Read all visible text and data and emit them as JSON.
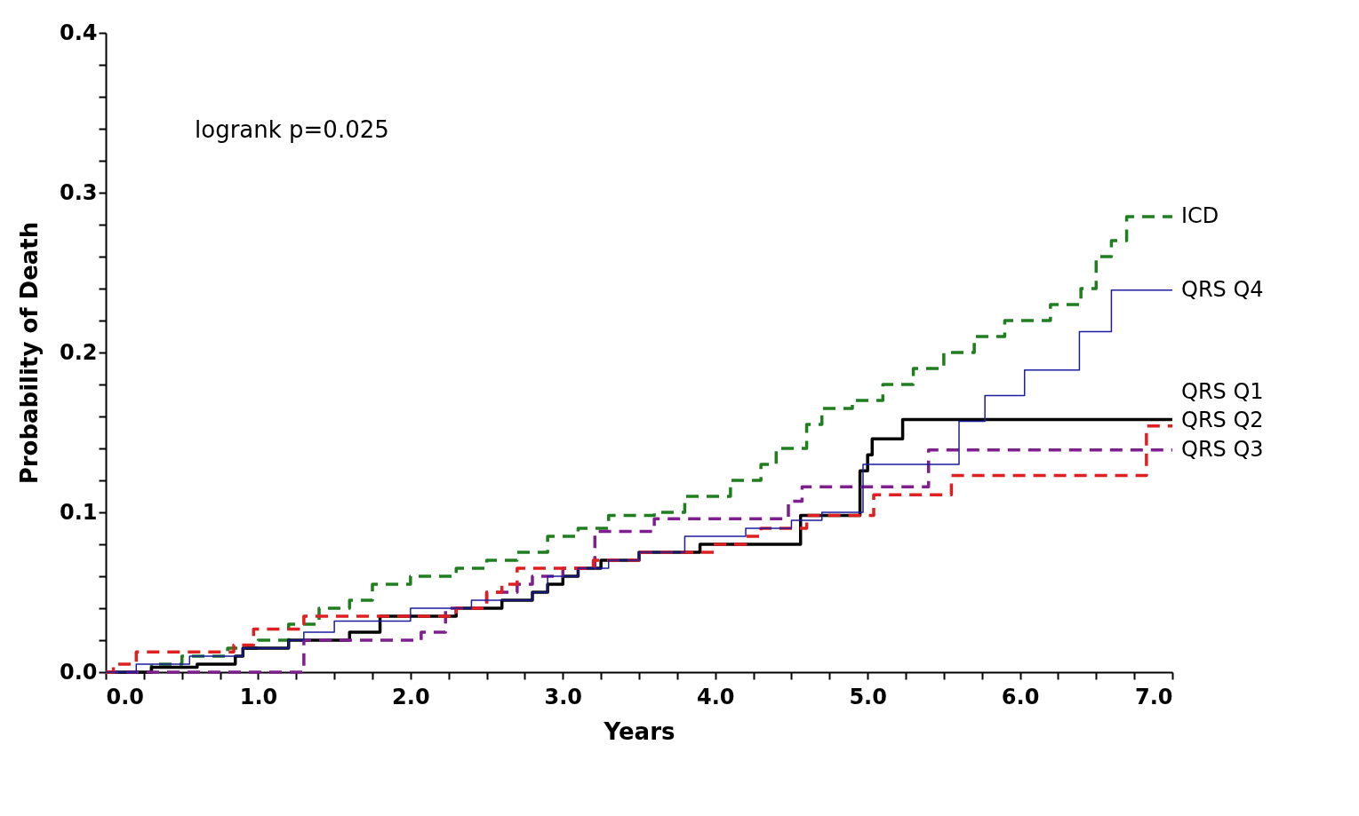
{
  "chart_data": {
    "type": "step",
    "xlabel": "Years",
    "ylabel": "Probability of Death",
    "annotations": [
      "logrank p=0.025"
    ],
    "legend": false,
    "grid": false,
    "xlim": [
      0,
      7
    ],
    "ylim": [
      0,
      0.4
    ],
    "xticks": [
      {
        "value": 0,
        "label": "0.0"
      },
      {
        "value": 0.25,
        "label": null
      },
      {
        "value": 0.5,
        "label": null
      },
      {
        "value": 0.75,
        "label": null
      },
      {
        "value": 1,
        "label": "1.0"
      },
      {
        "value": 1.25,
        "label": null
      },
      {
        "value": 1.5,
        "label": null
      },
      {
        "value": 1.75,
        "label": null
      },
      {
        "value": 2,
        "label": "2.0"
      },
      {
        "value": 2.25,
        "label": null
      },
      {
        "value": 2.5,
        "label": null
      },
      {
        "value": 2.75,
        "label": null
      },
      {
        "value": 3,
        "label": "3.0"
      },
      {
        "value": 3.25,
        "label": null
      },
      {
        "value": 3.5,
        "label": null
      },
      {
        "value": 3.75,
        "label": null
      },
      {
        "value": 4,
        "label": "4.0"
      },
      {
        "value": 4.25,
        "label": null
      },
      {
        "value": 4.5,
        "label": null
      },
      {
        "value": 4.75,
        "label": null
      },
      {
        "value": 5,
        "label": "5.0"
      },
      {
        "value": 5.25,
        "label": null
      },
      {
        "value": 5.5,
        "label": null
      },
      {
        "value": 5.75,
        "label": null
      },
      {
        "value": 6,
        "label": "6.0"
      },
      {
        "value": 6.25,
        "label": null
      },
      {
        "value": 6.5,
        "label": null
      },
      {
        "value": 6.75,
        "label": null
      },
      {
        "value": 7,
        "label": "7.0"
      }
    ],
    "yticks": [
      {
        "value": 0,
        "label": "0.0"
      },
      {
        "value": 0.02,
        "label": null
      },
      {
        "value": 0.04,
        "label": null
      },
      {
        "value": 0.06,
        "label": null
      },
      {
        "value": 0.08,
        "label": null
      },
      {
        "value": 0.1,
        "label": "0.1"
      },
      {
        "value": 0.12,
        "label": null
      },
      {
        "value": 0.14,
        "label": null
      },
      {
        "value": 0.16,
        "label": null
      },
      {
        "value": 0.18,
        "label": null
      },
      {
        "value": 0.2,
        "label": "0.2"
      },
      {
        "value": 0.22,
        "label": null
      },
      {
        "value": 0.24,
        "label": null
      },
      {
        "value": 0.26,
        "label": null
      },
      {
        "value": 0.28,
        "label": null
      },
      {
        "value": 0.3,
        "label": "0.3"
      },
      {
        "value": 0.32,
        "label": null
      },
      {
        "value": 0.34,
        "label": null
      },
      {
        "value": 0.36,
        "label": null
      },
      {
        "value": 0.38,
        "label": null
      },
      {
        "value": 0.4,
        "label": "0.4"
      }
    ],
    "series": [
      {
        "name": "ICD",
        "color": "#1f7f1f",
        "line_style": "dashed",
        "x": [
          0,
          0.3,
          0.5,
          0.8,
          1.0,
          1.2,
          1.4,
          1.6,
          1.75,
          2.0,
          2.3,
          2.5,
          2.7,
          2.9,
          3.1,
          3.3,
          3.6,
          3.8,
          4.1,
          4.3,
          4.4,
          4.6,
          4.7,
          4.9,
          5.1,
          5.3,
          5.5,
          5.7,
          5.9,
          6.2,
          6.4,
          6.5,
          6.6,
          6.7,
          7.0
        ],
        "values": [
          0,
          0.005,
          0.01,
          0.015,
          0.02,
          0.03,
          0.04,
          0.045,
          0.055,
          0.06,
          0.065,
          0.07,
          0.075,
          0.085,
          0.09,
          0.098,
          0.1,
          0.11,
          0.12,
          0.13,
          0.14,
          0.155,
          0.165,
          0.17,
          0.18,
          0.19,
          0.2,
          0.21,
          0.22,
          0.23,
          0.24,
          0.26,
          0.27,
          0.285,
          0.285
        ]
      },
      {
        "name": "QRS Q4",
        "color": "#1c1ca0",
        "line_style": "solid",
        "x": [
          0,
          0.2,
          0.55,
          0.9,
          1.2,
          1.3,
          1.5,
          2.0,
          2.4,
          2.8,
          2.9,
          3.1,
          3.3,
          3.5,
          3.8,
          4.2,
          4.5,
          4.7,
          4.97,
          5.6,
          5.77,
          6.03,
          6.39,
          6.6,
          7.0
        ],
        "values": [
          0,
          0.005,
          0.01,
          0.015,
          0.02,
          0.025,
          0.032,
          0.04,
          0.045,
          0.05,
          0.06,
          0.065,
          0.07,
          0.075,
          0.085,
          0.09,
          0.095,
          0.1,
          0.13,
          0.157,
          0.173,
          0.189,
          0.213,
          0.239,
          0.239
        ]
      },
      {
        "name": "QRS Q1",
        "color": "#000000",
        "line_style": "solid",
        "x": [
          0,
          0.3,
          0.6,
          0.85,
          0.9,
          1.2,
          1.6,
          1.8,
          2.3,
          2.6,
          2.8,
          2.9,
          3.0,
          3.1,
          3.25,
          3.5,
          3.9,
          4.56,
          4.95,
          5.0,
          5.03,
          5.23,
          7.0
        ],
        "values": [
          0,
          0.003,
          0.005,
          0.01,
          0.015,
          0.02,
          0.025,
          0.035,
          0.04,
          0.045,
          0.05,
          0.055,
          0.06,
          0.065,
          0.07,
          0.075,
          0.08,
          0.098,
          0.126,
          0.136,
          0.146,
          0.158,
          0.158
        ]
      },
      {
        "name": "QRS Q3",
        "color": "#7f1f8f",
        "line_style": "dashed",
        "x": [
          0,
          1.3,
          2.07,
          2.23,
          2.5,
          2.7,
          2.8,
          3.0,
          3.21,
          3.6,
          4.48,
          4.57,
          5.4,
          7.0
        ],
        "values": [
          0,
          0.02,
          0.025,
          0.04,
          0.05,
          0.055,
          0.06,
          0.065,
          0.088,
          0.096,
          0.107,
          0.116,
          0.139,
          0.139
        ]
      },
      {
        "name": "QRS Q2",
        "color": "#e02020",
        "line_style": "dashed",
        "x": [
          0,
          0.05,
          0.2,
          0.84,
          0.97,
          1.3,
          2.3,
          2.5,
          2.6,
          2.7,
          3.2,
          3.5,
          4.0,
          4.2,
          4.3,
          4.6,
          5.04,
          5.55,
          6.83,
          7.0
        ],
        "values": [
          0,
          0.005,
          0.0126,
          0.017,
          0.027,
          0.035,
          0.04,
          0.05,
          0.055,
          0.065,
          0.07,
          0.075,
          0.08,
          0.085,
          0.09,
          0.098,
          0.111,
          0.123,
          0.154,
          0.154
        ]
      }
    ]
  }
}
